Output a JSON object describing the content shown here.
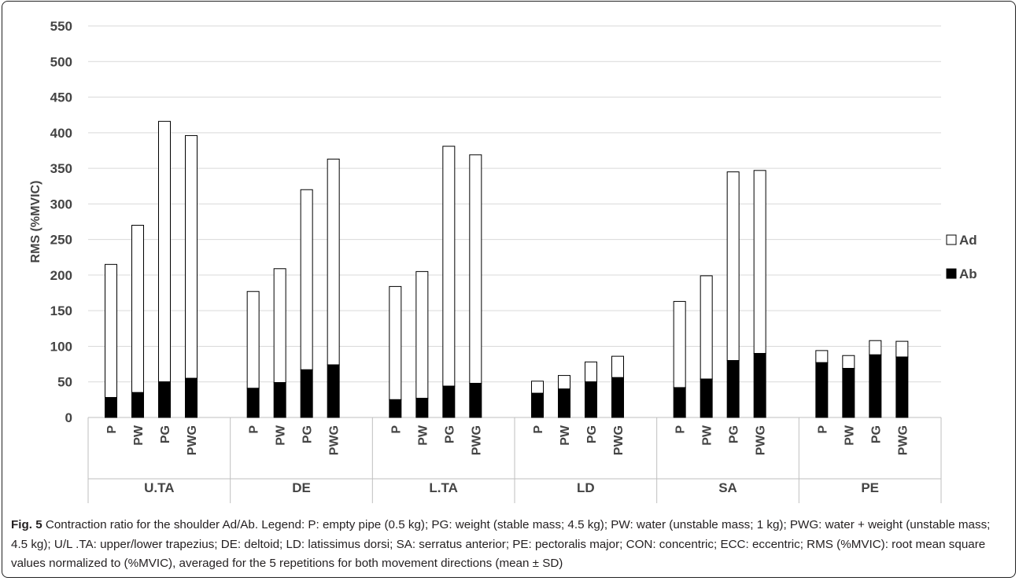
{
  "chart_data": {
    "type": "bar",
    "stacked": true,
    "ylabel": "RMS (%MVIC)",
    "ylim": [
      0,
      550
    ],
    "yticks": [
      0,
      50,
      100,
      150,
      200,
      250,
      300,
      350,
      400,
      450,
      500,
      550
    ],
    "grid": true,
    "legend_position": "right",
    "groups": [
      {
        "name": "U.TA",
        "categories": [
          "P",
          "PW",
          "PG",
          "PWG"
        ]
      },
      {
        "name": "DE",
        "categories": [
          "P",
          "PW",
          "PG",
          "PWG"
        ]
      },
      {
        "name": "L.TA",
        "categories": [
          "P",
          "PW",
          "PG",
          "PWG"
        ]
      },
      {
        "name": "LD",
        "categories": [
          "P",
          "PW",
          "PG",
          "PWG"
        ]
      },
      {
        "name": "SA",
        "categories": [
          "P",
          "PW",
          "PG",
          "PWG"
        ]
      },
      {
        "name": "PE",
        "categories": [
          "P",
          "PW",
          "PG",
          "PWG"
        ]
      }
    ],
    "series": [
      {
        "name": "Ab",
        "color": "#000000",
        "values": [
          28,
          35,
          50,
          55,
          41,
          49,
          67,
          74,
          25,
          27,
          44,
          48,
          34,
          40,
          50,
          56,
          42,
          54,
          80,
          90,
          77,
          69,
          88,
          85
        ]
      },
      {
        "name": "Ad",
        "color": "#ffffff",
        "values": [
          187,
          235,
          366,
          341,
          136,
          160,
          253,
          289,
          159,
          178,
          337,
          321,
          17,
          19,
          28,
          30,
          121,
          145,
          265,
          257,
          17,
          18,
          20,
          22
        ]
      }
    ]
  },
  "caption": {
    "label": "Fig. 5",
    "text": " Contraction ratio for the shoulder Ad/Ab. Legend: P: empty pipe (0.5 kg); PG: weight (stable mass; 4.5 kg); PW: water (unstable mass; 1 kg); PWG: water + weight (unstable mass; 4.5 kg); U/L .TA: upper/lower trapezius; DE: deltoid; LD: latissimus dorsi; SA: serratus anterior; PE: pectoralis major; CON: concentric; ECC: eccentric; RMS (%MVIC): root mean square values normalized to (%MVIC), averaged for the 5 repetitions for both movement directions (mean ± SD)"
  }
}
